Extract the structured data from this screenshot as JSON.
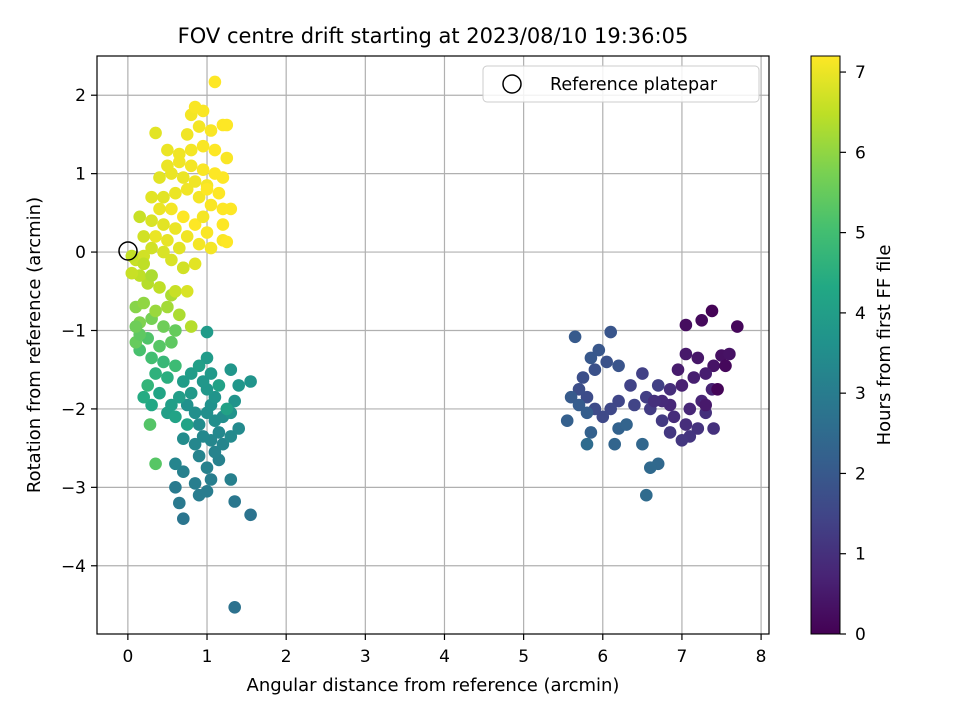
{
  "chart_data": {
    "type": "scatter",
    "title": "FOV centre drift starting at 2023/08/10 19:36:05",
    "xlabel": "Angular distance from reference (arcmin)",
    "ylabel": "Rotation from reference (arcmin)",
    "xlim": [
      -0.39,
      8.1
    ],
    "ylim": [
      -4.87,
      2.5
    ],
    "xticks": [
      0,
      1,
      2,
      3,
      4,
      5,
      6,
      7,
      8
    ],
    "yticks": [
      -4,
      -3,
      -2,
      -1,
      0,
      1,
      2
    ],
    "grid": true,
    "legend": {
      "position": "upper-right",
      "entries": [
        {
          "label": "Reference platepar",
          "marker": "open-circle"
        }
      ]
    },
    "reference_point": {
      "x": 0,
      "y": 0
    },
    "colorbar": {
      "label": "Hours from first FF file",
      "min": 0,
      "max": 7.2,
      "ticks": [
        0,
        1,
        2,
        3,
        4,
        5,
        6,
        7
      ],
      "colormap": "viridis"
    },
    "series": [
      {
        "encoding": "x, y, hours",
        "points": [
          [
            7.38,
            -0.75,
            0.05
          ],
          [
            7.7,
            -0.95,
            0.12
          ],
          [
            7.25,
            -0.87,
            0.18
          ],
          [
            7.05,
            -0.93,
            0.25
          ],
          [
            7.5,
            -1.32,
            0.3
          ],
          [
            7.6,
            -1.3,
            0.35
          ],
          [
            7.4,
            -1.45,
            0.4
          ],
          [
            7.2,
            -1.35,
            0.45
          ],
          [
            7.05,
            -1.3,
            0.5
          ],
          [
            6.95,
            -1.5,
            0.55
          ],
          [
            7.3,
            -1.55,
            0.6
          ],
          [
            7.15,
            -1.6,
            0.62
          ],
          [
            7.0,
            -1.7,
            0.66
          ],
          [
            7.38,
            -1.75,
            0.7
          ],
          [
            7.25,
            -1.9,
            0.74
          ],
          [
            7.1,
            -2.0,
            0.78
          ],
          [
            6.85,
            -1.95,
            0.82
          ],
          [
            6.75,
            -1.9,
            0.86
          ],
          [
            6.9,
            -2.1,
            0.9
          ],
          [
            7.05,
            -2.2,
            0.94
          ],
          [
            7.3,
            -2.05,
            0.98
          ],
          [
            7.4,
            -2.25,
            1.02
          ],
          [
            7.2,
            -2.25,
            1.06
          ],
          [
            7.1,
            -2.35,
            1.1
          ],
          [
            7.0,
            -2.4,
            1.14
          ],
          [
            6.85,
            -2.3,
            1.18
          ],
          [
            6.75,
            -2.15,
            1.22
          ],
          [
            6.6,
            -2.0,
            1.26
          ],
          [
            6.55,
            -1.85,
            1.3
          ],
          [
            6.7,
            -1.7,
            1.34
          ],
          [
            6.5,
            -1.55,
            1.38
          ],
          [
            6.35,
            -1.7,
            1.42
          ],
          [
            6.4,
            -1.95,
            1.46
          ],
          [
            6.2,
            -1.9,
            1.5
          ],
          [
            6.1,
            -2.0,
            1.54
          ],
          [
            6.0,
            -2.1,
            1.58
          ],
          [
            5.9,
            -2.0,
            1.62
          ],
          [
            5.8,
            -1.85,
            1.66
          ],
          [
            5.7,
            -1.75,
            1.7
          ],
          [
            5.75,
            -1.6,
            1.74
          ],
          [
            5.9,
            -1.5,
            1.78
          ],
          [
            6.05,
            -1.4,
            1.82
          ],
          [
            6.2,
            -1.45,
            1.86
          ],
          [
            6.1,
            -1.02,
            1.9
          ],
          [
            5.95,
            -1.25,
            1.94
          ],
          [
            5.85,
            -1.35,
            1.98
          ],
          [
            5.65,
            -1.08,
            2.02
          ],
          [
            5.6,
            -1.85,
            2.06
          ],
          [
            5.7,
            -1.95,
            2.1
          ],
          [
            5.8,
            -2.05,
            2.14
          ],
          [
            5.55,
            -2.15,
            2.18
          ],
          [
            5.85,
            -2.3,
            2.22
          ],
          [
            6.2,
            -2.25,
            2.26
          ],
          [
            6.3,
            -2.2,
            2.3
          ],
          [
            6.15,
            -2.45,
            2.34
          ],
          [
            6.5,
            -2.45,
            2.38
          ],
          [
            6.7,
            -2.7,
            2.42
          ],
          [
            6.6,
            -2.75,
            2.46
          ],
          [
            6.55,
            -3.1,
            2.5
          ],
          [
            5.8,
            -2.45,
            2.54
          ],
          [
            7.45,
            -1.75,
            0.08
          ],
          [
            7.55,
            -1.45,
            0.15
          ],
          [
            6.85,
            -1.75,
            0.95
          ],
          [
            6.65,
            -1.9,
            1.0
          ],
          [
            7.3,
            -1.95,
            0.5
          ],
          [
            1.35,
            -4.53,
            2.7
          ],
          [
            1.55,
            -3.35,
            2.75
          ],
          [
            0.7,
            -3.4,
            2.8
          ],
          [
            1.35,
            -3.18,
            2.85
          ],
          [
            0.65,
            -3.2,
            2.9
          ],
          [
            0.6,
            -3.0,
            2.95
          ],
          [
            0.9,
            -3.1,
            3.0
          ],
          [
            1.0,
            -3.05,
            3.0
          ],
          [
            0.85,
            -2.95,
            3.05
          ],
          [
            1.05,
            -2.9,
            3.05
          ],
          [
            1.3,
            -2.9,
            3.1
          ],
          [
            0.7,
            -2.8,
            3.1
          ],
          [
            1.0,
            -2.75,
            3.15
          ],
          [
            1.15,
            -2.65,
            3.15
          ],
          [
            0.9,
            -2.6,
            3.2
          ],
          [
            1.1,
            -2.55,
            3.2
          ],
          [
            0.6,
            -2.7,
            3.25
          ],
          [
            1.2,
            -2.45,
            3.25
          ],
          [
            1.05,
            -2.4,
            3.3
          ],
          [
            0.85,
            -2.45,
            3.3
          ],
          [
            0.95,
            -2.35,
            3.35
          ],
          [
            1.15,
            -2.3,
            3.35
          ],
          [
            1.3,
            -2.35,
            3.4
          ],
          [
            1.4,
            -2.25,
            3.4
          ],
          [
            0.7,
            -2.38,
            3.45
          ],
          [
            0.9,
            -2.2,
            3.45
          ],
          [
            1.1,
            -2.15,
            3.5
          ],
          [
            1.2,
            -2.1,
            3.5
          ],
          [
            1.0,
            -2.05,
            3.55
          ],
          [
            0.85,
            -2.05,
            3.55
          ],
          [
            0.75,
            -1.95,
            3.6
          ],
          [
            1.05,
            -1.95,
            3.6
          ],
          [
            1.3,
            -2.05,
            3.65
          ],
          [
            1.35,
            -1.9,
            3.65
          ],
          [
            1.1,
            -1.85,
            3.7
          ],
          [
            1.55,
            -1.65,
            3.7
          ],
          [
            1.4,
            -1.7,
            3.75
          ],
          [
            1.3,
            -1.5,
            3.75
          ],
          [
            1.0,
            -1.75,
            3.8
          ],
          [
            0.95,
            -1.65,
            3.8
          ],
          [
            0.8,
            -1.8,
            3.85
          ],
          [
            1.05,
            -1.55,
            3.85
          ],
          [
            1.0,
            -1.35,
            3.9
          ],
          [
            1.0,
            -1.02,
            3.9
          ],
          [
            0.8,
            -1.55,
            3.95
          ],
          [
            0.7,
            -1.65,
            3.95
          ],
          [
            0.65,
            -1.85,
            4.0
          ],
          [
            0.55,
            -1.95,
            4.0
          ],
          [
            0.5,
            -2.05,
            4.05
          ],
          [
            0.9,
            -1.45,
            4.05
          ],
          [
            1.15,
            -1.7,
            4.1
          ],
          [
            1.25,
            -2.0,
            4.1
          ],
          [
            0.75,
            -2.2,
            4.15
          ],
          [
            0.6,
            -2.1,
            4.15
          ],
          [
            0.4,
            -1.8,
            4.2
          ],
          [
            0.3,
            -1.95,
            4.3
          ],
          [
            0.2,
            -1.85,
            4.4
          ],
          [
            0.5,
            -1.6,
            4.5
          ],
          [
            0.35,
            -1.55,
            4.6
          ],
          [
            0.25,
            -1.7,
            4.7
          ],
          [
            0.45,
            -1.4,
            4.8
          ],
          [
            0.6,
            -1.45,
            4.9
          ],
          [
            0.3,
            -1.35,
            5.0
          ],
          [
            0.15,
            -1.25,
            5.1
          ],
          [
            0.25,
            -1.1,
            5.2
          ],
          [
            0.4,
            -1.2,
            5.3
          ],
          [
            0.55,
            -1.15,
            5.4
          ],
          [
            0.1,
            -1.15,
            5.5
          ],
          [
            0.35,
            -2.7,
            5.3
          ],
          [
            0.28,
            -2.2,
            5.25
          ],
          [
            0.6,
            -1.0,
            5.5
          ],
          [
            0.45,
            -0.95,
            5.6
          ],
          [
            0.3,
            -0.85,
            5.7
          ],
          [
            0.15,
            -0.9,
            5.8
          ],
          [
            0.1,
            -0.7,
            5.9
          ],
          [
            0.2,
            -0.65,
            6.0
          ],
          [
            0.35,
            -0.75,
            6.1
          ],
          [
            0.5,
            -0.7,
            6.2
          ],
          [
            0.65,
            -0.8,
            6.3
          ],
          [
            0.8,
            -0.95,
            6.4
          ],
          [
            0.55,
            -0.55,
            6.3
          ],
          [
            0.4,
            -0.45,
            6.5
          ],
          [
            0.25,
            -0.4,
            6.4
          ],
          [
            0.15,
            -0.3,
            6.5
          ],
          [
            0.05,
            -0.27,
            6.6
          ],
          [
            0.1,
            -0.1,
            6.6
          ],
          [
            0.2,
            -0.05,
            6.7
          ],
          [
            0.3,
            0.05,
            6.7
          ],
          [
            0.45,
            0.0,
            6.8
          ],
          [
            0.55,
            -0.1,
            6.8
          ],
          [
            0.7,
            -0.2,
            6.85
          ],
          [
            0.85,
            -0.15,
            6.9
          ],
          [
            0.65,
            0.05,
            6.9
          ],
          [
            0.5,
            0.15,
            6.95
          ],
          [
            0.35,
            0.2,
            7.0
          ],
          [
            0.2,
            0.2,
            6.7
          ],
          [
            0.15,
            0.45,
            6.6
          ],
          [
            0.3,
            0.4,
            6.8
          ],
          [
            0.45,
            0.35,
            6.9
          ],
          [
            0.6,
            0.3,
            7.0
          ],
          [
            0.75,
            0.2,
            7.05
          ],
          [
            0.9,
            0.1,
            7.1
          ],
          [
            1.05,
            0.05,
            7.1
          ],
          [
            1.2,
            0.15,
            7.15
          ],
          [
            1.0,
            0.25,
            7.15
          ],
          [
            0.85,
            0.35,
            7.2
          ],
          [
            0.7,
            0.45,
            7.2
          ],
          [
            0.55,
            0.55,
            7.1
          ],
          [
            0.4,
            0.55,
            7.0
          ],
          [
            0.3,
            0.7,
            6.9
          ],
          [
            0.45,
            0.7,
            6.9
          ],
          [
            0.6,
            0.75,
            7.0
          ],
          [
            0.75,
            0.8,
            7.05
          ],
          [
            0.9,
            0.7,
            7.1
          ],
          [
            1.05,
            0.6,
            7.15
          ],
          [
            1.2,
            0.55,
            7.2
          ],
          [
            1.3,
            0.55,
            7.2
          ],
          [
            1.0,
            0.85,
            7.1
          ],
          [
            0.85,
            0.9,
            7.05
          ],
          [
            0.7,
            0.95,
            7.0
          ],
          [
            0.55,
            1.0,
            7.0
          ],
          [
            0.4,
            0.95,
            6.9
          ],
          [
            0.5,
            1.1,
            7.0
          ],
          [
            0.65,
            1.15,
            7.05
          ],
          [
            0.8,
            1.1,
            7.1
          ],
          [
            0.95,
            1.05,
            7.15
          ],
          [
            1.1,
            1.0,
            7.2
          ],
          [
            1.2,
            0.95,
            7.2
          ],
          [
            1.25,
            1.2,
            7.15
          ],
          [
            1.1,
            1.3,
            7.2
          ],
          [
            0.95,
            1.35,
            7.15
          ],
          [
            0.8,
            1.3,
            7.1
          ],
          [
            0.65,
            1.25,
            7.05
          ],
          [
            0.5,
            1.3,
            7.0
          ],
          [
            0.35,
            1.52,
            6.9
          ],
          [
            0.75,
            1.5,
            7.05
          ],
          [
            0.9,
            1.6,
            7.1
          ],
          [
            1.05,
            1.55,
            7.15
          ],
          [
            1.2,
            1.62,
            7.2
          ],
          [
            1.25,
            1.62,
            7.2
          ],
          [
            0.8,
            1.75,
            7.1
          ],
          [
            0.85,
            1.85,
            7.15
          ],
          [
            0.95,
            1.8,
            7.15
          ],
          [
            1.1,
            2.17,
            7.2
          ],
          [
            1.0,
            0.8,
            7.2
          ],
          [
            1.15,
            0.75,
            7.2
          ],
          [
            1.2,
            0.35,
            7.2
          ],
          [
            1.25,
            0.13,
            7.2
          ],
          [
            0.6,
            -0.5,
            6.6
          ],
          [
            0.75,
            -0.5,
            6.8
          ],
          [
            0.7,
            -0.2,
            6.7
          ],
          [
            0.95,
            0.45,
            7.1
          ],
          [
            0.3,
            -0.3,
            6.3
          ],
          [
            0.2,
            -0.15,
            6.5
          ],
          [
            0.05,
            -0.05,
            6.55
          ],
          [
            0.15,
            -1.05,
            5.4
          ],
          [
            0.1,
            -0.95,
            5.6
          ]
        ]
      }
    ]
  }
}
